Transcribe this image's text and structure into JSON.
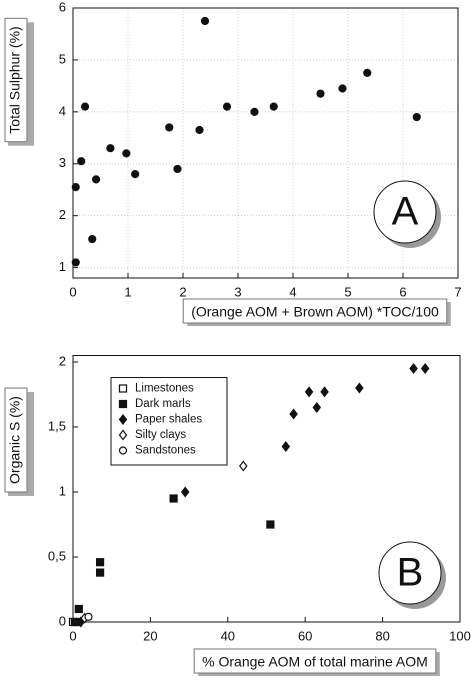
{
  "chart_data": [
    {
      "type": "scatter",
      "annotation": "A",
      "x_label": "(Orange AOM + Brown AOM) *TOC/100",
      "y_label": "Total Sulphur (%)",
      "xlim": [
        0,
        7
      ],
      "ylim": [
        0.8,
        6
      ],
      "xticks": [
        0,
        1,
        2,
        3,
        4,
        5,
        6,
        7
      ],
      "yticks": [
        1,
        2,
        3,
        4,
        5,
        6
      ],
      "grid": true,
      "series": [
        {
          "color": "#111111",
          "marker": "circle-filled",
          "x": [
            0.05,
            0.05,
            0.15,
            0.22,
            0.35,
            0.42,
            0.68,
            0.97,
            1.13,
            1.75,
            1.9,
            2.3,
            2.4,
            2.8,
            3.3,
            3.65,
            4.5,
            4.9,
            5.35,
            6.25
          ],
          "values": [
            1.1,
            2.55,
            3.05,
            4.1,
            1.55,
            2.7,
            3.3,
            3.2,
            2.8,
            3.7,
            2.9,
            3.65,
            5.75,
            4.1,
            4.0,
            4.1,
            4.35,
            4.45,
            4.75,
            3.9
          ]
        }
      ]
    },
    {
      "type": "scatter",
      "annotation": "B",
      "x_label": "% Orange AOM of total marine AOM",
      "y_label": "Organic S (%)",
      "xlim": [
        0,
        100
      ],
      "ylim": [
        0,
        2.05
      ],
      "xticks": [
        0,
        20,
        40,
        60,
        80,
        100
      ],
      "yticks": [
        0,
        {
          "value": 0.5,
          "label": "0,5"
        },
        1,
        {
          "value": 1.5,
          "label": "1,5"
        },
        2
      ],
      "grid": false,
      "legend": "top-left",
      "series": [
        {
          "name": "Limestones",
          "color": "#111111",
          "marker": "square-open",
          "x": [
            0,
            1
          ],
          "values": [
            0,
            0
          ]
        },
        {
          "name": "Dark marls",
          "color": "#111111",
          "marker": "square-filled",
          "x": [
            0.5,
            1.5,
            7,
            7,
            26,
            51
          ],
          "values": [
            0,
            0.1,
            0.38,
            0.46,
            0.95,
            0.75
          ]
        },
        {
          "name": "Paper shales",
          "color": "#111111",
          "marker": "diamond-filled",
          "x": [
            2,
            29,
            55,
            57,
            61,
            63,
            65,
            74,
            88,
            91
          ],
          "values": [
            0,
            1.0,
            1.35,
            1.6,
            1.77,
            1.65,
            1.77,
            1.8,
            1.95,
            1.95
          ]
        },
        {
          "name": "Silty clays",
          "color": "#111111",
          "marker": "diamond-open",
          "x": [
            3,
            44
          ],
          "values": [
            0.03,
            1.2
          ]
        },
        {
          "name": "Sandstones",
          "color": "#111111",
          "marker": "circle-open",
          "x": [
            4
          ],
          "values": [
            0.04
          ]
        }
      ]
    }
  ]
}
